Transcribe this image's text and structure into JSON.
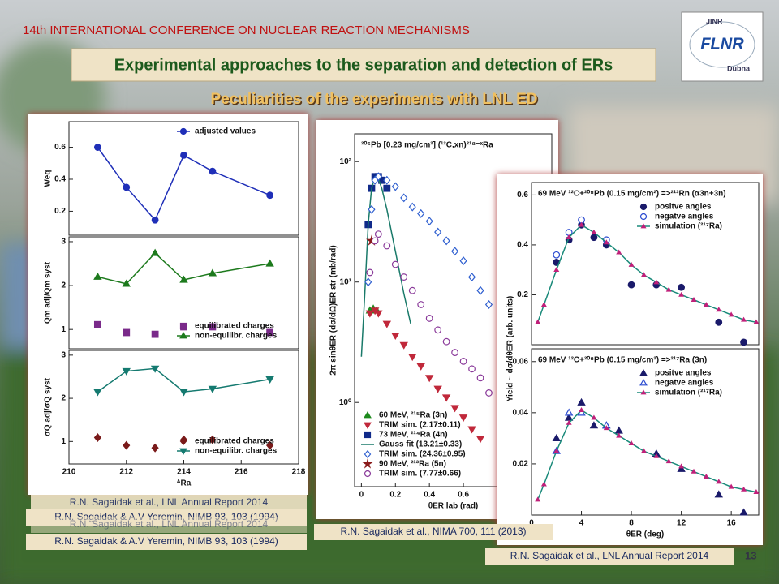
{
  "header": {
    "conference": "14th INTERNATIONAL CONFERENCE ON NUCLEAR REACTION MECHANISMS",
    "title": "Experimental  approaches to the separation and detection of ERs",
    "subtitle": "Peculiarities of the experiments with LNL ED"
  },
  "logo": {
    "top": "JINR",
    "main": "FLNR",
    "bottom": "Dubna"
  },
  "charts": [
    {
      "type": "scatter",
      "ylabel": "Weq",
      "xlim": [
        210,
        218
      ],
      "ylim": [
        0.05,
        0.76
      ],
      "yticks": [
        0.2,
        0.4,
        0.6
      ],
      "legend": "upper right",
      "series": [
        {
          "name": "adjusted values",
          "color": "#1f2fb8",
          "marker": "circle",
          "line": true,
          "x": [
            211,
            212,
            213,
            214,
            215,
            217
          ],
          "values": [
            0.6,
            0.35,
            0.145,
            0.55,
            0.45,
            0.3
          ]
        }
      ]
    },
    {
      "type": "scatter",
      "ylabel": "Qm adj/Qm syst",
      "xlim": [
        210,
        218
      ],
      "ylim": [
        0.56,
        3.11
      ],
      "yticks": [
        1,
        2,
        3
      ],
      "legend": "lower right",
      "series": [
        {
          "name": "equilibrated charges",
          "color": "#7a2a8a",
          "marker": "square",
          "line": false,
          "x": [
            211,
            212,
            213,
            214,
            215,
            217
          ],
          "values": [
            1.11,
            0.93,
            0.89,
            1.06,
            1.06,
            0.93
          ]
        },
        {
          "name": "non-equilibr. charges",
          "color": "#1d7a1d",
          "marker": "triangle",
          "line": true,
          "x": [
            211,
            212,
            213,
            214,
            215,
            217
          ],
          "values": [
            2.2,
            2.04,
            2.74,
            2.13,
            2.28,
            2.5
          ]
        }
      ]
    },
    {
      "type": "scatter",
      "ylabel": "σQ adj/σQ syst",
      "xlabel": "ᴬRa",
      "xlim": [
        210,
        218
      ],
      "ylim": [
        0.48,
        3.11
      ],
      "xticks": [
        210,
        212,
        214,
        216,
        218
      ],
      "yticks": [
        1,
        2,
        3
      ],
      "legend": "lower right",
      "series": [
        {
          "name": "equilibrated charges",
          "color": "#7a1a1a",
          "marker": "diamond",
          "line": false,
          "x": [
            211,
            212,
            213,
            214,
            215,
            217
          ],
          "values": [
            1.09,
            0.91,
            0.85,
            1.04,
            1.04,
            0.91
          ]
        },
        {
          "name": "non-equilibr. charges",
          "color": "#157a70",
          "marker": "triangle-down",
          "line": true,
          "x": [
            211,
            212,
            213,
            214,
            215,
            217
          ],
          "values": [
            2.15,
            2.63,
            2.69,
            2.15,
            2.22,
            2.44
          ]
        }
      ]
    },
    {
      "type": "scatter",
      "title": "²⁰⁶Pb [0.23 mg/cm²] (¹²C,xn)²¹⁸⁻ˣRa",
      "ylabel": "2π sinθER (dσ/dΩ)ER εtr (mb/rad)",
      "xlabel": "θER lab (rad)",
      "log_y": true,
      "xlim": [
        -0.04,
        1.12
      ],
      "ylim": [
        0.2,
        170
      ],
      "xticks": [
        0,
        0.2,
        0.4,
        0.6
      ],
      "yticks": [
        {
          "value": 1,
          "label": "10⁰"
        },
        {
          "value": 10,
          "label": "10¹"
        },
        {
          "value": 100,
          "label": "10²"
        }
      ],
      "legend": "lower left",
      "series": [
        {
          "name": "60 MeV, ²¹⁵Ra (3n)",
          "color": "#1d8a1d",
          "marker": "triangle",
          "line": false,
          "x": [
            0.05,
            0.07,
            0.09
          ],
          "values": [
            5.8,
            6,
            5.8
          ]
        },
        {
          "name": "TRIM sim. (2.17±0.11)",
          "color": "#c0283a",
          "marker": "triangle-down",
          "line": false,
          "x": [
            0.05,
            0.08,
            0.1,
            0.15,
            0.2,
            0.25,
            0.3,
            0.35,
            0.4,
            0.45,
            0.5,
            0.55,
            0.6,
            0.65,
            0.7
          ],
          "values": [
            5.5,
            5.8,
            5.5,
            4.5,
            3.6,
            3,
            2.4,
            2,
            1.6,
            1.3,
            1.1,
            0.9,
            0.75,
            0.6,
            0.5
          ]
        },
        {
          "name": "73 MeV, ²¹⁴Ra (4n)",
          "color": "#102a8a",
          "marker": "square",
          "line": false,
          "x": [
            0.04,
            0.06,
            0.08,
            0.1,
            0.12,
            0.15
          ],
          "values": [
            30,
            60,
            75,
            75,
            70,
            60
          ]
        },
        {
          "name": "Gauss fit (13.21±0.33)",
          "color": "#1a7a6a",
          "marker": "none",
          "line": true,
          "x": [
            0,
            0.02,
            0.04,
            0.06,
            0.08,
            0.1,
            0.12,
            0.15,
            0.2,
            0.25,
            0.29
          ],
          "values": [
            2.4,
            8,
            30,
            60,
            75,
            72,
            60,
            40,
            18,
            8,
            4.5
          ]
        },
        {
          "name": "TRIM sim. (24.36±0.95)",
          "color": "#3060d0",
          "marker": "diamond-open",
          "line": false,
          "x": [
            0.04,
            0.06,
            0.08,
            0.1,
            0.15,
            0.2,
            0.25,
            0.3,
            0.35,
            0.4,
            0.45,
            0.5,
            0.55,
            0.6,
            0.65,
            0.7,
            0.75
          ],
          "values": [
            10,
            40,
            70,
            75,
            70,
            62,
            50,
            42,
            37,
            32,
            26,
            22,
            18,
            15,
            11,
            8.5,
            6.5
          ]
        },
        {
          "name": "90 MeV, ²¹³Ra (5n)",
          "color": "#8a1a1a",
          "marker": "star",
          "line": false,
          "x": [
            0.06
          ],
          "values": [
            22
          ]
        },
        {
          "name": "TRIM sim. (7.77±0.66)",
          "color": "#8a3a9a",
          "marker": "circle-open",
          "line": false,
          "x": [
            0.05,
            0.08,
            0.1,
            0.15,
            0.2,
            0.25,
            0.3,
            0.35,
            0.4,
            0.45,
            0.5,
            0.55,
            0.6,
            0.65,
            0.7,
            0.75
          ],
          "values": [
            12,
            22,
            25,
            20,
            14,
            11,
            8.5,
            6.5,
            5,
            4,
            3.2,
            2.6,
            2.2,
            1.9,
            1.6,
            1.2
          ]
        }
      ]
    },
    {
      "type": "scatter",
      "title": "69 MeV ¹²C+²⁰⁸Pb (0.15 mg/cm²) =>²¹³Rn (α3n+3n)",
      "ylabel": "Yield ~ dσ/dθER (arb. units)",
      "xlim": [
        0,
        18.2
      ],
      "ylim": [
        0,
        0.65
      ],
      "yticks": [
        0.2,
        0.4,
        0.6
      ],
      "legend": "upper right",
      "series": [
        {
          "name": "positve angles",
          "color": "#1a1a6a",
          "marker": "circle",
          "line": false,
          "x": [
            2,
            3,
            4,
            5,
            6,
            8,
            10,
            12,
            15,
            17
          ],
          "values": [
            0.33,
            0.42,
            0.48,
            0.43,
            0.4,
            0.24,
            0.24,
            0.23,
            0.09,
            0.01
          ]
        },
        {
          "name": "negatve angles",
          "color": "#2a4ad0",
          "marker": "circle-open",
          "line": false,
          "x": [
            2,
            3,
            4,
            6
          ],
          "values": [
            0.36,
            0.45,
            0.5,
            0.42
          ]
        },
        {
          "name": "simulation (²¹⁷Ra)",
          "color": "#1a8a7a",
          "marker": "triangle-small",
          "line": true,
          "x": [
            0.5,
            1,
            2,
            3,
            4,
            5,
            6,
            7,
            8,
            9,
            10,
            11,
            12,
            13,
            14,
            15,
            16,
            17,
            18
          ],
          "values": [
            0.09,
            0.16,
            0.3,
            0.43,
            0.48,
            0.45,
            0.41,
            0.37,
            0.32,
            0.28,
            0.25,
            0.22,
            0.2,
            0.18,
            0.16,
            0.14,
            0.12,
            0.1,
            0.09
          ]
        }
      ]
    },
    {
      "type": "scatter",
      "title": "69 MeV ¹²C+²⁰⁸Pb (0.15 mg/cm²) =>²¹⁷Ra (3n)",
      "xlabel": "θER (deg)",
      "xlim": [
        0,
        18.2
      ],
      "ylim": [
        0,
        0.065
      ],
      "xticks": [
        0,
        4,
        8,
        12,
        16
      ],
      "yticks": [
        0.02,
        0.04,
        0.06
      ],
      "legend": "upper right",
      "series": [
        {
          "name": "positve angles",
          "color": "#1a1a6a",
          "marker": "triangle",
          "line": false,
          "x": [
            2,
            3,
            4,
            5,
            6,
            7,
            10,
            12,
            15,
            17
          ],
          "values": [
            0.03,
            0.038,
            0.044,
            0.035,
            0.035,
            0.033,
            0.024,
            0.018,
            0.008,
            0.001
          ]
        },
        {
          "name": "negatve angles",
          "color": "#2a4ad0",
          "marker": "triangle-open",
          "line": false,
          "x": [
            2,
            3,
            4,
            6
          ],
          "values": [
            0.025,
            0.04,
            0.04,
            0.035
          ]
        },
        {
          "name": "simulation (²¹⁷Ra)",
          "color": "#1a8a7a",
          "marker": "triangle-small",
          "line": true,
          "x": [
            0.5,
            1,
            2,
            3,
            4,
            5,
            6,
            7,
            8,
            9,
            10,
            11,
            12,
            13,
            14,
            15,
            16,
            17,
            18
          ],
          "values": [
            0.006,
            0.012,
            0.025,
            0.036,
            0.041,
            0.038,
            0.034,
            0.031,
            0.028,
            0.025,
            0.023,
            0.021,
            0.019,
            0.017,
            0.015,
            0.013,
            0.011,
            0.01,
            0.009
          ]
        }
      ]
    }
  ],
  "references": [
    "R.N. Sagaidak et al., LNL Annual Report 2014",
    "R.N. Sagaidak & A.V Yeremin, NIMB 93, 103 (1994)",
    "R.N. Sagaidak et al., LNL Annual Report 2014",
    "R.N. Sagaidak & A.V Yeremin, NIMB 93, 103 (1994)",
    "R.N. Sagaidak et al., NIMA 700, 111 (2013)",
    "R.N. Sagaidak et al., LNL Annual Report 2014"
  ],
  "page_number": "13"
}
